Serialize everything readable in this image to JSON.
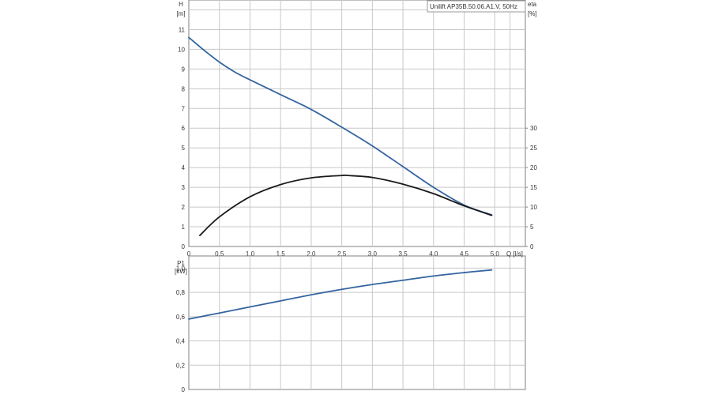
{
  "legend_text": "Unilift AP35B.50.06.A1.V, 50Hz",
  "colors": {
    "head_curve": "#3464a0",
    "eta_curve": "#1a1a1a",
    "power_curve": "#3464a0",
    "grid": "#c8c8c8",
    "frame": "#808080"
  },
  "chart_data": [
    {
      "type": "line",
      "name": "head-efficiency",
      "grid": true,
      "xlim": [
        0,
        5.5
      ],
      "x_ticks": [
        "0",
        "0,5",
        "1,0",
        "1.5",
        "2.0",
        "2,5",
        "3,0",
        "3,5",
        "4,0",
        "4,5",
        "5,0"
      ],
      "x_tick_values": [
        0,
        0.5,
        1.0,
        1.5,
        2.0,
        2.5,
        3.0,
        3.5,
        4.0,
        4.5,
        5.0
      ],
      "xlabel": "Q [l/s]",
      "ylabel_left_line1": "H",
      "ylabel_left_line2": "[m]",
      "ylim_left": [
        0,
        12.5
      ],
      "y_ticks_left": [
        "0",
        "1",
        "2",
        "3",
        "4",
        "5",
        "6",
        "7",
        "8",
        "9",
        "10",
        "11"
      ],
      "ylabel_right_line1": "eta",
      "ylabel_right_line2": "[%]",
      "ylim_right": [
        0,
        62.5
      ],
      "y_ticks_right": [
        "0",
        "5",
        "10",
        "15",
        "20",
        "25",
        "30"
      ],
      "series": [
        {
          "key": "head",
          "axis": "left",
          "x": [
            0,
            0.25,
            0.5,
            0.75,
            1.0,
            1.5,
            2.0,
            2.5,
            3.0,
            3.5,
            4.0,
            4.5,
            4.95
          ],
          "y": [
            10.6,
            9.95,
            9.35,
            8.85,
            8.45,
            7.7,
            6.95,
            6.05,
            5.1,
            4.05,
            3.0,
            2.1,
            1.6
          ]
        },
        {
          "key": "eta",
          "axis": "right",
          "x": [
            0.18,
            0.5,
            1.0,
            1.5,
            2.0,
            2.5,
            2.6,
            3.0,
            3.5,
            4.0,
            4.5,
            4.95
          ],
          "y": [
            2.8,
            7.5,
            12.6,
            15.7,
            17.4,
            18.0,
            18.0,
            17.5,
            15.8,
            13.4,
            10.3,
            7.9
          ]
        }
      ]
    },
    {
      "type": "line",
      "name": "power",
      "grid": true,
      "xlim": [
        0,
        5.5
      ],
      "ylabel_line1": "P1",
      "ylabel_line2": "[kW]",
      "ylim": [
        0,
        1.1
      ],
      "y_ticks": [
        "0",
        "0,2",
        "0,4",
        "0,6",
        "0,8",
        "1,0"
      ],
      "y_tick_values": [
        0,
        0.2,
        0.4,
        0.6,
        0.8,
        1.0
      ],
      "series": [
        {
          "key": "p1",
          "x": [
            0,
            0.5,
            1.0,
            1.5,
            2.0,
            2.5,
            3.0,
            3.5,
            4.0,
            4.5,
            4.95
          ],
          "y": [
            0.58,
            0.63,
            0.68,
            0.73,
            0.78,
            0.825,
            0.865,
            0.9,
            0.935,
            0.963,
            0.985
          ]
        }
      ]
    }
  ]
}
